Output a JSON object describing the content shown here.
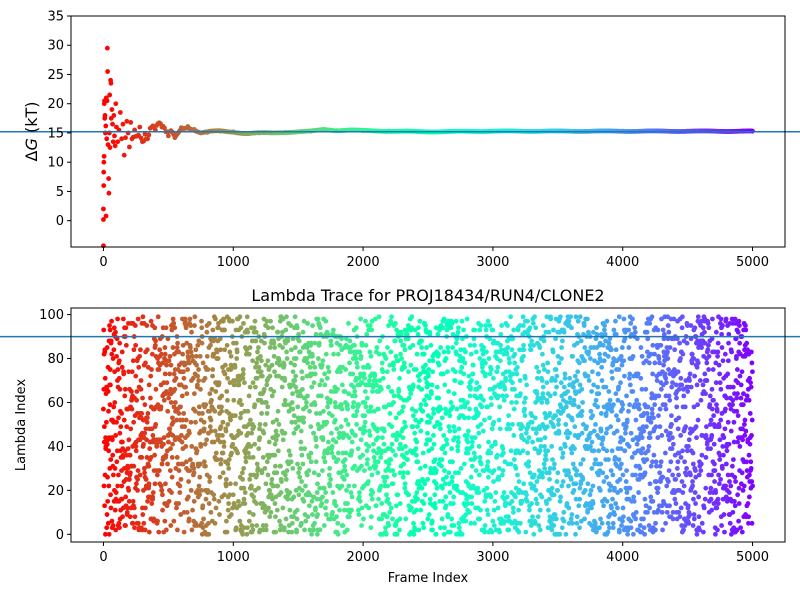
{
  "chart_data": [
    {
      "type": "scatter",
      "title": "",
      "xlabel": "",
      "ylabel": "ΔG (kT)",
      "ylabel_symbol": "Δ",
      "ylabel_var": "G",
      "ylabel_unit": " (kT)",
      "xlim": [
        -250,
        5250
      ],
      "ylim": [
        -4.5,
        35
      ],
      "xticks": [
        0,
        1000,
        2000,
        3000,
        4000,
        5000
      ],
      "yticks": [
        0,
        5,
        10,
        15,
        20,
        25,
        30,
        35
      ],
      "reference_line": {
        "y": 15.2,
        "color": "#1f77b4"
      },
      "colormap": "rainbow (red at frame 0 to violet at frame 5000)",
      "series_description": "running free-energy estimate per frame",
      "points": [
        [
          0,
          -4.3
        ],
        [
          0,
          0.2
        ],
        [
          0,
          2.0
        ],
        [
          3,
          10.0
        ],
        [
          5,
          11.0
        ],
        [
          6,
          20.0
        ],
        [
          8,
          20.5
        ],
        [
          2,
          8.3
        ],
        [
          2,
          6.0
        ],
        [
          10,
          17.5
        ],
        [
          12,
          18.0
        ],
        [
          15,
          15.0
        ],
        [
          18,
          16.2
        ],
        [
          20,
          0.8
        ],
        [
          22,
          21.0
        ],
        [
          25,
          14.0
        ],
        [
          28,
          20.5
        ],
        [
          30,
          29.5
        ],
        [
          32,
          25.5
        ],
        [
          35,
          13.0
        ],
        [
          40,
          7.2
        ],
        [
          42,
          4.7
        ],
        [
          45,
          15.0
        ],
        [
          48,
          21.5
        ],
        [
          50,
          12.5
        ],
        [
          55,
          24.0
        ],
        [
          58,
          23.5
        ],
        [
          60,
          17.5
        ],
        [
          65,
          19.0
        ],
        [
          70,
          16.5
        ],
        [
          75,
          13.5
        ],
        [
          80,
          18.0
        ],
        [
          85,
          14.5
        ],
        [
          90,
          12.8
        ],
        [
          95,
          20.0
        ],
        [
          100,
          16.0
        ],
        [
          110,
          13.5
        ],
        [
          120,
          15.5
        ],
        [
          130,
          18.5
        ],
        [
          140,
          14.0
        ],
        [
          150,
          16.5
        ],
        [
          160,
          11.2
        ],
        [
          170,
          14.2
        ],
        [
          180,
          17.0
        ],
        [
          190,
          15.0
        ],
        [
          200,
          12.6
        ],
        [
          210,
          16.8
        ],
        [
          220,
          14.0
        ],
        [
          240,
          15.5
        ],
        [
          260,
          14.5
        ],
        [
          280,
          16.0
        ],
        [
          300,
          13.5
        ],
        [
          320,
          14.8
        ],
        [
          340,
          14.0
        ],
        [
          360,
          15.8
        ],
        [
          380,
          16.2
        ],
        [
          400,
          15.5
        ],
        [
          420,
          16.6
        ],
        [
          450,
          16.0
        ],
        [
          480,
          15.2
        ],
        [
          500,
          14.5
        ],
        [
          520,
          15.4
        ],
        [
          550,
          14.2
        ],
        [
          600,
          15.9
        ],
        [
          650,
          16.1
        ],
        [
          700,
          15.6
        ],
        [
          750,
          15.0
        ],
        [
          800,
          15.1
        ],
        [
          900,
          15.3
        ],
        [
          1000,
          15.2
        ],
        [
          1100,
          14.9
        ],
        [
          1200,
          15.0
        ],
        [
          1300,
          15.0
        ],
        [
          1400,
          15.1
        ],
        [
          1500,
          15.2
        ],
        [
          1600,
          15.3
        ],
        [
          1700,
          15.6
        ],
        [
          1800,
          15.4
        ],
        [
          1900,
          15.5
        ],
        [
          2000,
          15.4
        ],
        [
          2200,
          15.3
        ],
        [
          2500,
          15.2
        ],
        [
          3000,
          15.3
        ],
        [
          3500,
          15.3
        ],
        [
          4000,
          15.3
        ],
        [
          4500,
          15.3
        ],
        [
          5000,
          15.3
        ]
      ]
    },
    {
      "type": "scatter",
      "title": "Lambda Trace for PROJ18434/RUN4/CLONE2",
      "xlabel": "Frame Index",
      "ylabel": "Lambda Index",
      "xlim": [
        -250,
        5250
      ],
      "ylim": [
        -3.5,
        103
      ],
      "xticks": [
        0,
        1000,
        2000,
        3000,
        4000,
        5000
      ],
      "yticks": [
        0,
        20,
        40,
        60,
        80,
        100
      ],
      "reference_line": {
        "y": 90,
        "color": "#1f77b4"
      },
      "colormap": "rainbow (red at frame 0 to violet at frame 5000)",
      "series_description": "lambda index visited at each frame, roughly uniform over 0–99 for frames 0–5000"
    }
  ]
}
